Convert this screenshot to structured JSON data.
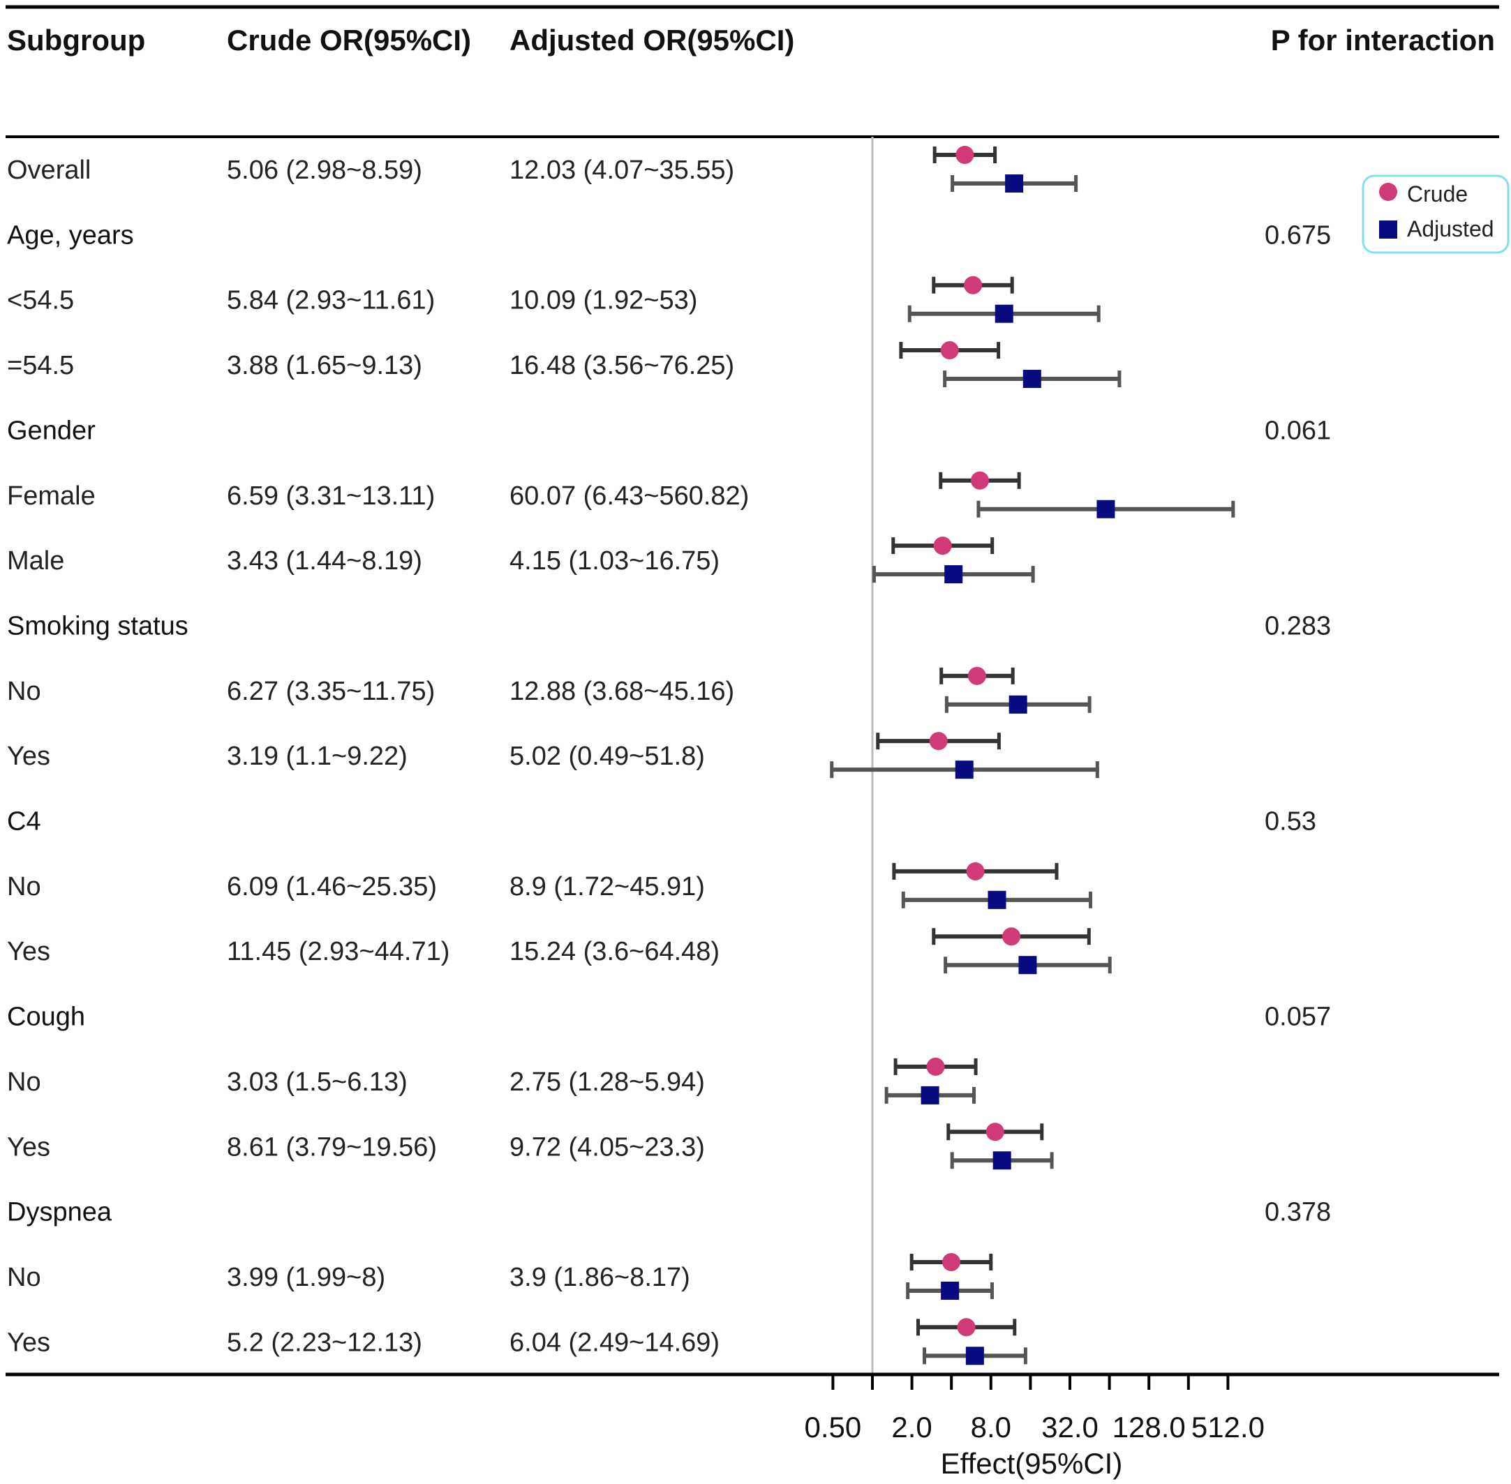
{
  "chart_data": {
    "type": "forest",
    "columns": {
      "subgroup": "Subgroup",
      "crude": "Crude OR(95%CI)",
      "adjusted": "Adjusted OR(95%CI)",
      "p": "P for interaction"
    },
    "rows": [
      {
        "label": "Overall",
        "group": false,
        "crude_text": "5.06 (2.98~8.59)",
        "adjusted_text": "12.03 (4.07~35.55)",
        "p": "",
        "crude": [
          5.06,
          2.98,
          8.59
        ],
        "adjusted": [
          12.03,
          4.07,
          35.55
        ]
      },
      {
        "label": "Age, years",
        "group": true,
        "crude_text": "",
        "adjusted_text": "",
        "p": "0.675",
        "crude": null,
        "adjusted": null
      },
      {
        "label": "<54.5",
        "group": false,
        "crude_text": "5.84 (2.93~11.61)",
        "adjusted_text": "10.09 (1.92~53)",
        "p": "",
        "crude": [
          5.84,
          2.93,
          11.61
        ],
        "adjusted": [
          10.09,
          1.92,
          53
        ]
      },
      {
        "label": "=54.5",
        "group": false,
        "crude_text": "3.88 (1.65~9.13)",
        "adjusted_text": "16.48 (3.56~76.25)",
        "p": "",
        "crude": [
          3.88,
          1.65,
          9.13
        ],
        "adjusted": [
          16.48,
          3.56,
          76.25
        ]
      },
      {
        "label": "Gender",
        "group": true,
        "crude_text": "",
        "adjusted_text": "",
        "p": "0.061",
        "crude": null,
        "adjusted": null
      },
      {
        "label": "Female",
        "group": false,
        "crude_text": "6.59 (3.31~13.11)",
        "adjusted_text": "60.07 (6.43~560.82)",
        "p": "",
        "crude": [
          6.59,
          3.31,
          13.11
        ],
        "adjusted": [
          60.07,
          6.43,
          560.82
        ]
      },
      {
        "label": "Male",
        "group": false,
        "crude_text": "3.43 (1.44~8.19)",
        "adjusted_text": "4.15 (1.03~16.75)",
        "p": "",
        "crude": [
          3.43,
          1.44,
          8.19
        ],
        "adjusted": [
          4.15,
          1.03,
          16.75
        ]
      },
      {
        "label": "Smoking status",
        "group": true,
        "crude_text": "",
        "adjusted_text": "",
        "p": "0.283",
        "crude": null,
        "adjusted": null
      },
      {
        "label": "No",
        "group": false,
        "crude_text": "6.27 (3.35~11.75)",
        "adjusted_text": "12.88 (3.68~45.16)",
        "p": "",
        "crude": [
          6.27,
          3.35,
          11.75
        ],
        "adjusted": [
          12.88,
          3.68,
          45.16
        ]
      },
      {
        "label": "Yes",
        "group": false,
        "crude_text": "3.19 (1.1~9.22)",
        "adjusted_text": "5.02 (0.49~51.8)",
        "p": "",
        "crude": [
          3.19,
          1.1,
          9.22
        ],
        "adjusted": [
          5.02,
          0.49,
          51.8
        ]
      },
      {
        "label": "C4",
        "group": true,
        "crude_text": "",
        "adjusted_text": "",
        "p": "0.53",
        "crude": null,
        "adjusted": null
      },
      {
        "label": "No",
        "group": false,
        "crude_text": "6.09 (1.46~25.35)",
        "adjusted_text": "8.9 (1.72~45.91)",
        "p": "",
        "crude": [
          6.09,
          1.46,
          25.35
        ],
        "adjusted": [
          8.9,
          1.72,
          45.91
        ]
      },
      {
        "label": "Yes",
        "group": false,
        "crude_text": "11.45 (2.93~44.71)",
        "adjusted_text": "15.24 (3.6~64.48)",
        "p": "",
        "crude": [
          11.45,
          2.93,
          44.71
        ],
        "adjusted": [
          15.24,
          3.6,
          64.48
        ]
      },
      {
        "label": "Cough",
        "group": true,
        "crude_text": "",
        "adjusted_text": "",
        "p": "0.057",
        "crude": null,
        "adjusted": null
      },
      {
        "label": "No",
        "group": false,
        "crude_text": "3.03 (1.5~6.13)",
        "adjusted_text": "2.75 (1.28~5.94)",
        "p": "",
        "crude": [
          3.03,
          1.5,
          6.13
        ],
        "adjusted": [
          2.75,
          1.28,
          5.94
        ]
      },
      {
        "label": "Yes",
        "group": false,
        "crude_text": "8.61 (3.79~19.56)",
        "adjusted_text": "9.72 (4.05~23.3)",
        "p": "",
        "crude": [
          8.61,
          3.79,
          19.56
        ],
        "adjusted": [
          9.72,
          4.05,
          23.3
        ]
      },
      {
        "label": "Dyspnea",
        "group": true,
        "crude_text": "",
        "adjusted_text": "",
        "p": "0.378",
        "crude": null,
        "adjusted": null
      },
      {
        "label": "No",
        "group": false,
        "crude_text": "3.99 (1.99~8)",
        "adjusted_text": "3.9 (1.86~8.17)",
        "p": "",
        "crude": [
          3.99,
          1.99,
          8
        ],
        "adjusted": [
          3.9,
          1.86,
          8.17
        ]
      },
      {
        "label": "Yes",
        "group": false,
        "crude_text": "5.2 (2.23~12.13)",
        "adjusted_text": "6.04 (2.49~14.69)",
        "p": "",
        "crude": [
          5.2,
          2.23,
          12.13
        ],
        "adjusted": [
          6.04,
          2.49,
          14.69
        ]
      }
    ],
    "x_axis": {
      "title": "Effect(95%CI)",
      "scale": "log2",
      "range": [
        0.5,
        724
      ],
      "reference": 1,
      "ticks": [
        0.5,
        1,
        2,
        4,
        8,
        16,
        32,
        64,
        128,
        256,
        512
      ],
      "tick_labels": [
        {
          "value": 0.5,
          "label": "0.50"
        },
        {
          "value": 2,
          "label": "2.0"
        },
        {
          "value": 8,
          "label": "8.0"
        },
        {
          "value": 32,
          "label": "32.0"
        },
        {
          "value": 128,
          "label": "128.0"
        },
        {
          "value": 512,
          "label": "512.0"
        }
      ]
    },
    "legend": {
      "position": "top-right",
      "items": [
        {
          "name": "Crude",
          "marker": "circle"
        },
        {
          "name": "Adjusted",
          "marker": "square"
        }
      ]
    },
    "colors": {
      "crude": "#d13a78",
      "adjusted": "#0a0a80",
      "crude_line": "#333333",
      "adjusted_line": "#555555",
      "reference_line": "#bbbbbb",
      "legend_border": "#7fe0ee"
    }
  }
}
